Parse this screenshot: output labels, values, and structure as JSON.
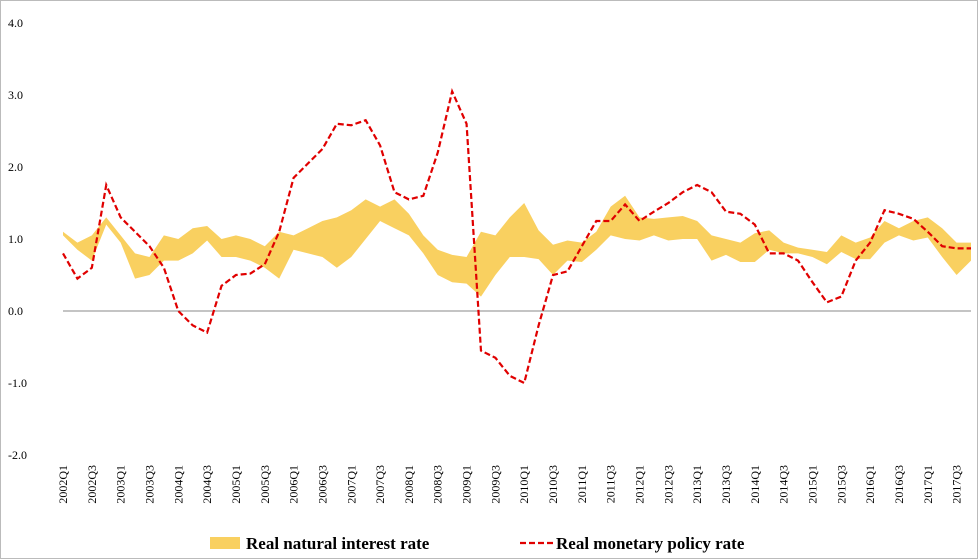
{
  "chart_data": {
    "type": "band-line",
    "categories": [
      "2002Q1",
      null,
      "2002Q3",
      null,
      "2003Q1",
      null,
      "2003Q3",
      null,
      "2004Q1",
      null,
      "2004Q3",
      null,
      "2005Q1",
      null,
      "2005Q3",
      null,
      "2006Q1",
      null,
      "2006Q3",
      null,
      "2007Q1",
      null,
      "2007Q3",
      null,
      "2008Q1",
      null,
      "2008Q3",
      null,
      "2009Q1",
      null,
      "2009Q3",
      null,
      "2010Q1",
      null,
      "2010Q3",
      null,
      "2011Q1",
      null,
      "2011Q3",
      null,
      "2012Q1",
      null,
      "2012Q3",
      null,
      "2013Q1",
      null,
      "2013Q3",
      null,
      "2014Q1",
      null,
      "2014Q3",
      null,
      "2015Q1",
      null,
      "2015Q3",
      null,
      "2016Q1",
      null,
      "2016Q3",
      null,
      "2017Q1",
      null,
      "2017Q3",
      null
    ],
    "series": [
      {
        "name": "Real natural interest rate",
        "kind": "band",
        "color": "#f9d060",
        "low": [
          1.05,
          0.85,
          0.7,
          1.2,
          0.95,
          0.45,
          0.5,
          0.7,
          0.7,
          0.8,
          0.98,
          0.75,
          0.75,
          0.7,
          0.6,
          0.45,
          0.85,
          0.8,
          0.75,
          0.6,
          0.75,
          1.0,
          1.25,
          1.15,
          1.05,
          0.8,
          0.5,
          0.4,
          0.38,
          0.2,
          0.5,
          0.75,
          0.75,
          0.72,
          0.5,
          0.7,
          0.68,
          0.85,
          1.05,
          1.0,
          0.98,
          1.05,
          0.98,
          1.0,
          1.0,
          0.7,
          0.78,
          0.68,
          0.68,
          0.85,
          0.8,
          0.8,
          0.75,
          0.65,
          0.82,
          0.72,
          0.72,
          0.95,
          1.05,
          0.98,
          1.02,
          0.75,
          0.5,
          0.7
        ],
        "high": [
          1.1,
          0.95,
          1.05,
          1.3,
          1.05,
          0.8,
          0.75,
          1.05,
          1.0,
          1.15,
          1.18,
          1.0,
          1.05,
          1.0,
          0.9,
          1.1,
          1.05,
          1.15,
          1.25,
          1.3,
          1.4,
          1.55,
          1.45,
          1.55,
          1.35,
          1.05,
          0.85,
          0.78,
          0.75,
          1.1,
          1.05,
          1.3,
          1.5,
          1.12,
          0.92,
          0.98,
          0.95,
          1.1,
          1.45,
          1.6,
          1.3,
          1.28,
          1.3,
          1.32,
          1.25,
          1.05,
          1.0,
          0.95,
          1.08,
          1.12,
          0.95,
          0.88,
          0.85,
          0.82,
          1.05,
          0.95,
          1.02,
          1.25,
          1.15,
          1.25,
          1.3,
          1.15,
          0.95,
          0.95
        ]
      },
      {
        "name": "Real monetary policy rate",
        "kind": "line",
        "dashed": true,
        "color": "#e00000",
        "values": [
          0.8,
          0.45,
          0.6,
          1.75,
          1.3,
          1.1,
          0.9,
          0.6,
          0.0,
          -0.2,
          -0.3,
          0.35,
          0.5,
          0.52,
          0.65,
          1.1,
          1.85,
          2.05,
          2.25,
          2.6,
          2.58,
          2.65,
          2.3,
          1.65,
          1.55,
          1.6,
          2.2,
          3.05,
          2.6,
          -0.55,
          -0.65,
          -0.9,
          -1.0,
          -0.2,
          0.5,
          0.55,
          0.9,
          1.25,
          1.25,
          1.48,
          1.25,
          1.38,
          1.5,
          1.65,
          1.75,
          1.65,
          1.38,
          1.35,
          1.2,
          0.8,
          0.8,
          0.7,
          0.4,
          0.12,
          0.2,
          0.7,
          0.95,
          1.4,
          1.35,
          1.28,
          1.1,
          0.9,
          0.87,
          0.87
        ]
      }
    ],
    "ylim": [
      -2,
      4
    ],
    "yticks": [
      {
        "value": -2,
        "label": "-2.0"
      },
      {
        "value": -1,
        "label": "-1.0"
      },
      {
        "value": 0,
        "label": "0.0"
      },
      {
        "value": 1,
        "label": "1.0"
      },
      {
        "value": 2,
        "label": "2.0"
      },
      {
        "value": 3,
        "label": "3.0"
      },
      {
        "value": 4,
        "label": "4.0"
      }
    ],
    "zero_line": true,
    "legend": "bottom"
  }
}
